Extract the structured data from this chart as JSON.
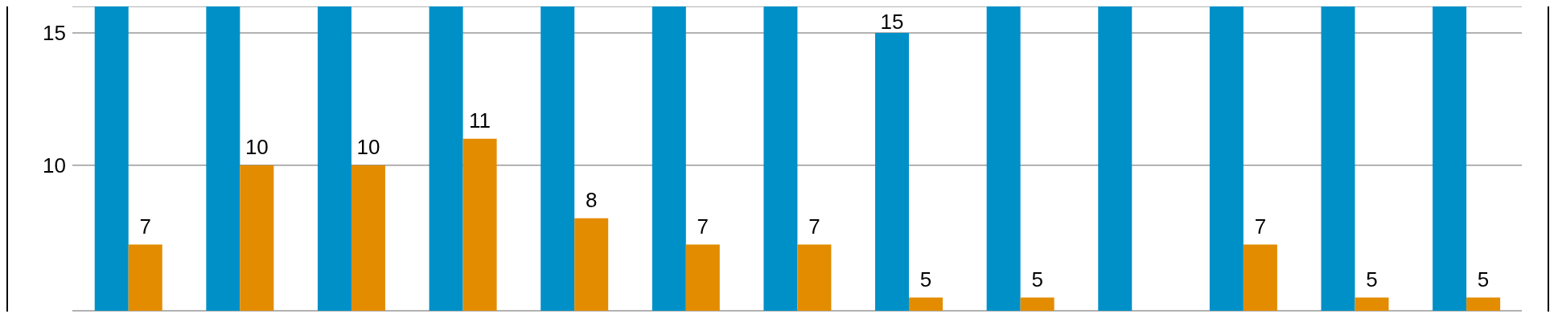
{
  "chart_data": {
    "type": "bar",
    "categories": [
      null,
      null,
      null,
      null,
      null,
      null,
      null,
      null,
      null,
      null,
      null,
      null,
      null
    ],
    "series": [
      {
        "color": "#0090c8",
        "values": [
          16,
          16,
          16,
          16,
          16,
          16,
          16,
          15,
          16,
          16,
          16,
          16,
          16
        ],
        "value_labels": [
          null,
          null,
          null,
          null,
          null,
          null,
          null,
          "15",
          null,
          null,
          null,
          null,
          null
        ]
      },
      {
        "color": "#e38c00",
        "values": [
          7,
          10,
          10,
          11,
          8,
          7,
          7,
          5,
          5,
          null,
          7,
          5,
          5
        ],
        "value_labels": [
          "7",
          "10",
          "10",
          "11",
          "8",
          "7",
          "7",
          "5",
          "5",
          null,
          "7",
          "5",
          "5"
        ]
      }
    ],
    "ylim": [
      4.5,
      16
    ],
    "yticks": [
      10,
      15
    ],
    "grid": "y"
  }
}
